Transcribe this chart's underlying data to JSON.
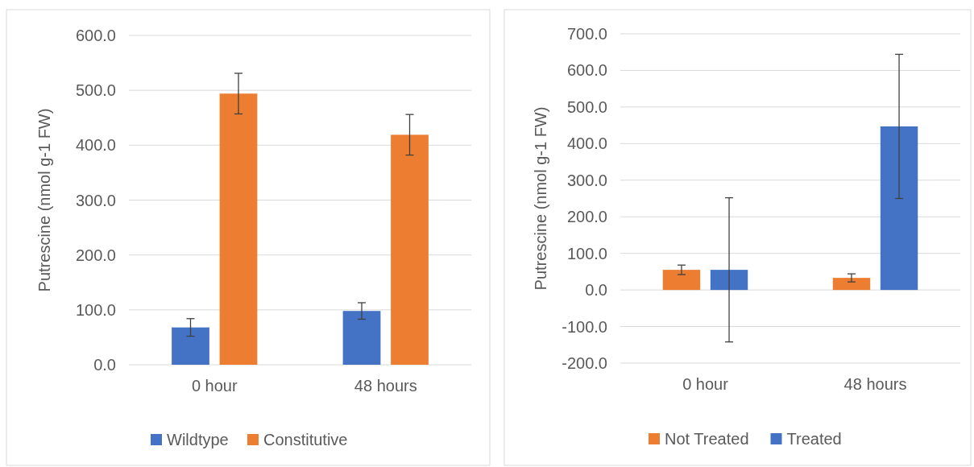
{
  "chart_data": [
    {
      "type": "bar",
      "ylabel": "Putrescine (nmol g-1 FW)",
      "categories": [
        "0 hour",
        "48 hours"
      ],
      "series": [
        {
          "name": "Wildtype",
          "color": "#4472c4",
          "values": [
            68,
            98
          ],
          "errors": [
            16,
            15
          ]
        },
        {
          "name": "Constitutive",
          "color": "#ed7d31",
          "values": [
            494,
            419
          ],
          "errors": [
            37,
            37
          ]
        }
      ],
      "ylim": [
        0,
        600
      ],
      "yticks": [
        {
          "value": 0,
          "label": "0.0"
        },
        {
          "value": 100,
          "label": "100.0"
        },
        {
          "value": 200,
          "label": "200.0"
        },
        {
          "value": 300,
          "label": "300.0"
        },
        {
          "value": 400,
          "label": "400.0"
        },
        {
          "value": 500,
          "label": "500.0"
        },
        {
          "value": 600,
          "label": "600.0"
        }
      ],
      "grid": "y",
      "legend": "bottom"
    },
    {
      "type": "bar",
      "ylabel": "Putrescine (nmol g-1 FW)",
      "categories": [
        "0 hour",
        "48 hours"
      ],
      "series": [
        {
          "name": "Not Treated",
          "color": "#ed7d31",
          "values": [
            55,
            33
          ],
          "errors": [
            13,
            11
          ]
        },
        {
          "name": "Treated",
          "color": "#4472c4",
          "values": [
            55,
            447
          ],
          "errors": [
            197,
            197
          ]
        }
      ],
      "ylim": [
        -200,
        700
      ],
      "yticks": [
        {
          "value": -200,
          "label": "-200.0"
        },
        {
          "value": -100,
          "label": "-100.0"
        },
        {
          "value": 0,
          "label": "0.0"
        },
        {
          "value": 100,
          "label": "100.0"
        },
        {
          "value": 200,
          "label": "200.0"
        },
        {
          "value": 300,
          "label": "300.0"
        },
        {
          "value": 400,
          "label": "400.0"
        },
        {
          "value": 500,
          "label": "500.0"
        },
        {
          "value": 600,
          "label": "600.0"
        },
        {
          "value": 700,
          "label": "700.0"
        }
      ],
      "grid": "y",
      "legend": "bottom"
    }
  ]
}
